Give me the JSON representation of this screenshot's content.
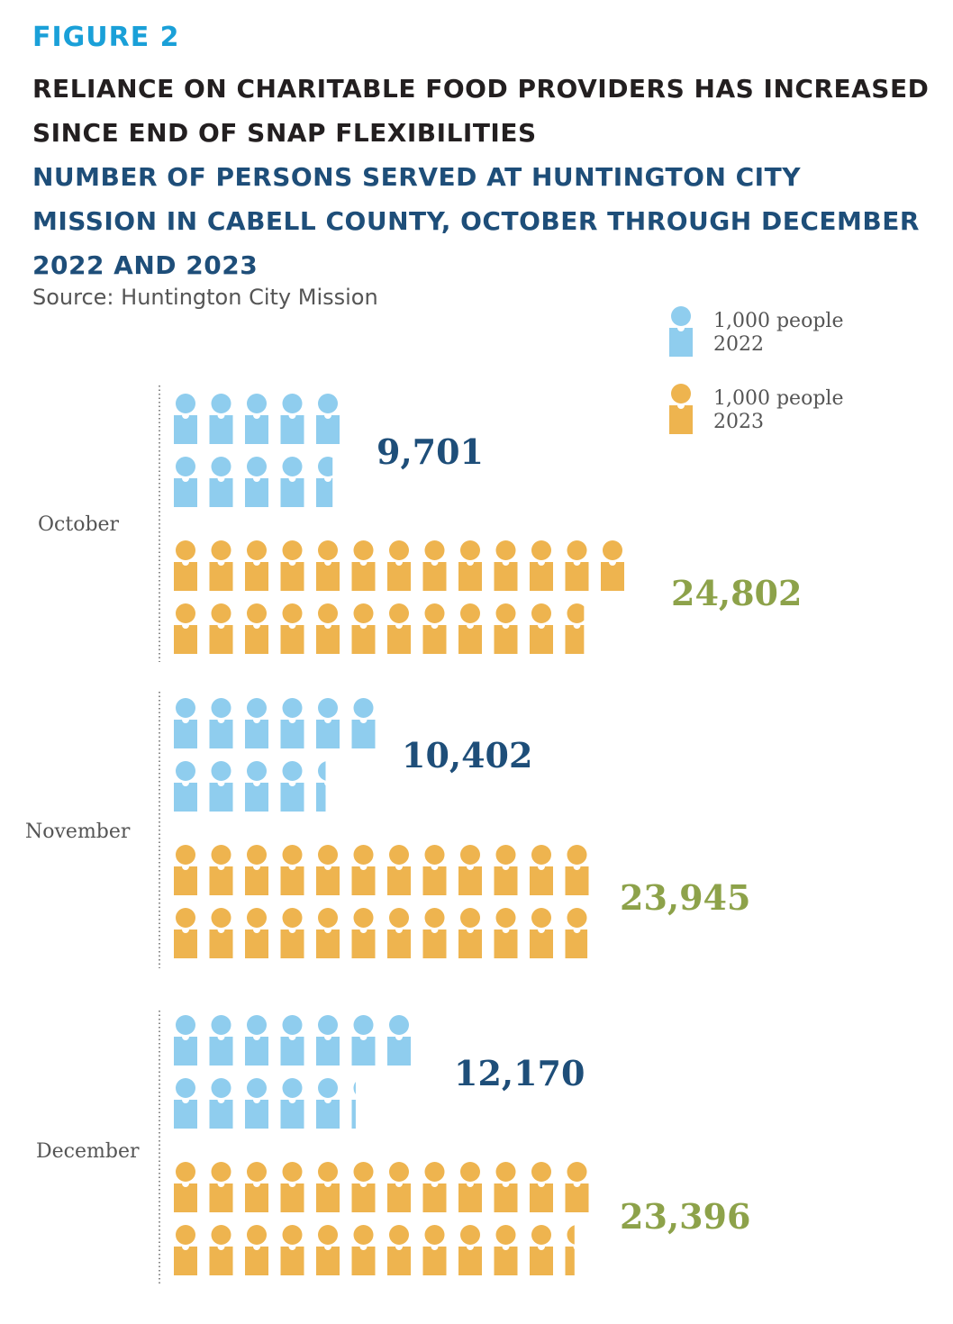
{
  "figure_label": "FIGURE 2",
  "title": "RELIANCE ON CHARITABLE FOOD PROVIDERS HAS INCREASED SINCE END OF SNAP FLEXIBILITIES",
  "subtitle": "NUMBER OF PERSONS SERVED AT HUNTINGTON CITY MISSION IN CABELL COUNTY, OCTOBER THROUGH DECEMBER 2022 AND 2023",
  "source": "Source: Huntington City Mission",
  "colors": {
    "y2022": "#8fcdee",
    "y2023": "#eeb44f",
    "label2022": "#1e4e79",
    "label2023": "#8da24a"
  },
  "chart_data": {
    "type": "pictograph",
    "unit": 1000,
    "categories": [
      "October",
      "November",
      "December"
    ],
    "series": [
      {
        "name": "2022",
        "legend_line1": "1,000 people",
        "legend_line2": "2022",
        "values": [
          9701,
          10402,
          12170
        ],
        "labels": [
          "9,701",
          "10,402",
          "12,170"
        ]
      },
      {
        "name": "2023",
        "legend_line1": "1,000 people",
        "legend_line2": "2023",
        "values": [
          24802,
          23945,
          23396
        ],
        "labels": [
          "24,802",
          "23,945",
          "23,396"
        ]
      }
    ]
  }
}
